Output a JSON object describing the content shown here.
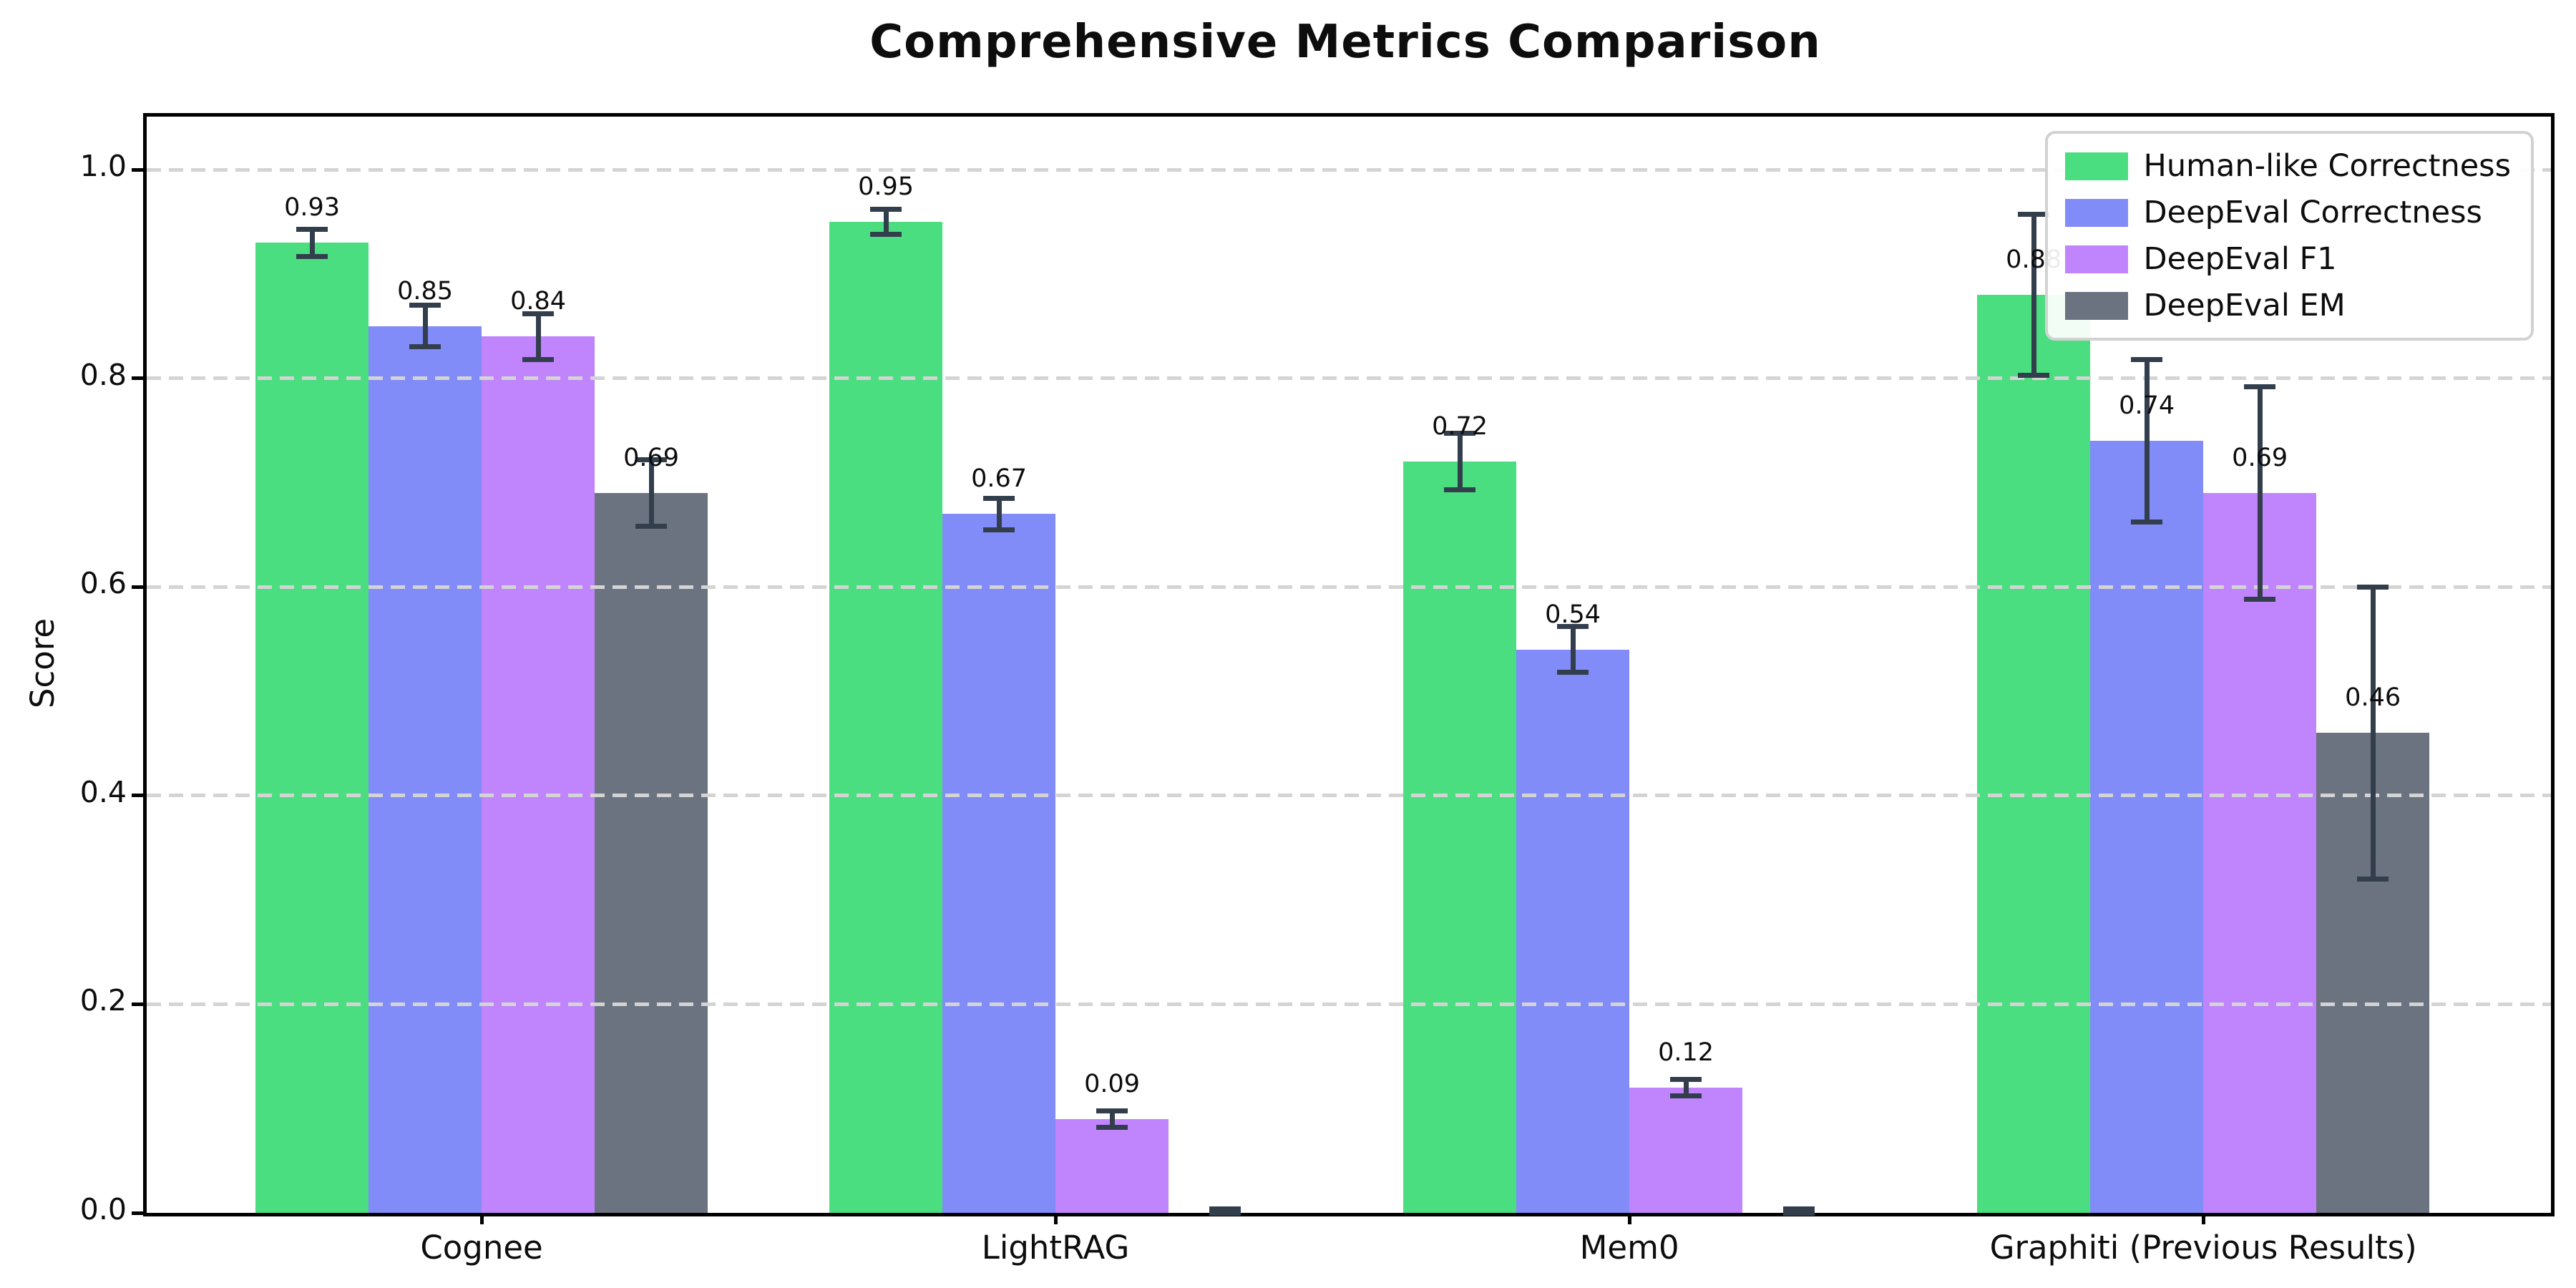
{
  "title": "Comprehensive Metrics Comparison",
  "chart_data": {
    "type": "bar",
    "title": "Comprehensive Metrics Comparison",
    "xlabel": "",
    "ylabel": "Score",
    "ylim": [
      0.0,
      1.05
    ],
    "yticks": [
      "0.0",
      "0.2",
      "0.4",
      "0.6",
      "0.8",
      "1.0"
    ],
    "grid": "horizontal dashed",
    "legend_position": "upper right",
    "error_bar_color": "#333e4d",
    "categories": [
      "Cognee",
      "LightRAG",
      "Mem0",
      "Graphiti (Previous Results)"
    ],
    "series": [
      {
        "name": "Human-like Correctness",
        "color": "#4ade80",
        "values": [
          0.93,
          0.95,
          0.72,
          0.88
        ],
        "errors": [
          0.013,
          0.012,
          0.027,
          0.077
        ],
        "labels": [
          "0.93",
          "0.95",
          "0.72",
          "0.88"
        ]
      },
      {
        "name": "DeepEval Correctness",
        "color": "#818cf8",
        "values": [
          0.85,
          0.67,
          0.54,
          0.74
        ],
        "errors": [
          0.02,
          0.015,
          0.022,
          0.078
        ],
        "labels": [
          "0.85",
          "0.67",
          "0.54",
          "0.74"
        ]
      },
      {
        "name": "DeepEval F1",
        "color": "#c084fc",
        "values": [
          0.84,
          0.09,
          0.12,
          0.69
        ],
        "errors": [
          0.022,
          0.008,
          0.008,
          0.102
        ],
        "labels": [
          "0.84",
          "0.09",
          "0.12",
          "0.69"
        ]
      },
      {
        "name": "DeepEval EM",
        "color": "#6b7280",
        "values": [
          0.69,
          0.0,
          0.0,
          0.46
        ],
        "errors": [
          0.032,
          0.004,
          0.004,
          0.14
        ],
        "labels": [
          "0.69",
          "",
          "",
          "0.46"
        ]
      }
    ]
  }
}
